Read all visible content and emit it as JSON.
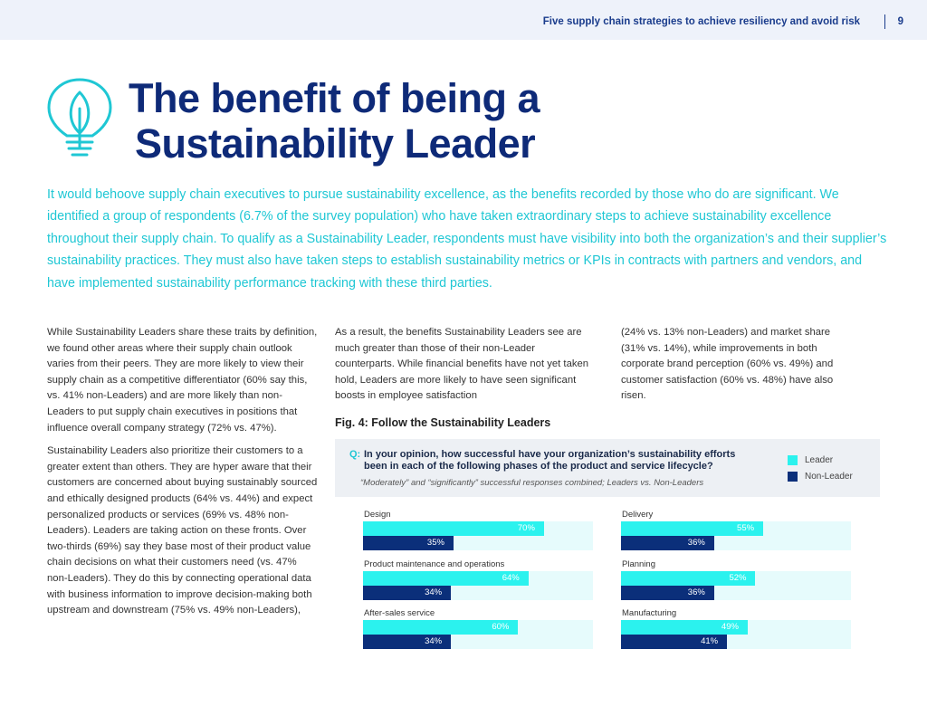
{
  "header": {
    "title": "Five supply chain strategies to achieve resiliency and avoid risk",
    "page_number": "9"
  },
  "colors": {
    "navy": "#0e2a78",
    "teal": "#1fc7d4",
    "leader": "#2bf2ee",
    "non_leader": "#0b2f7a"
  },
  "icon": "lightbulb-leaf-icon",
  "title": {
    "line1": "The benefit of being a",
    "line2": "Sustainability Leader"
  },
  "lead": "It would behoove supply chain executives to pursue sustainability excellence, as the benefits recorded by those who do are significant. We identified a group of respondents (6.7% of the survey population) who have taken extraordinary steps to achieve sustainability excellence throughout their supply chain. To qualify as a Sustainability Leader, respondents must have visibility into both the organization’s and their supplier’s sustainability practices. They must also have taken steps to establish sustainability metrics or KPIs in contracts with partners and vendors, and have implemented sustainability performance tracking with these third parties.",
  "body": {
    "col1_p1": "While Sustainability Leaders share these traits by definition, we found other areas where their supply chain outlook varies from their peers. They are more likely to view their supply chain as a competitive differentiator (60% say this, vs. 41% non-Leaders) and are more likely than non-Leaders to put supply chain executives in positions that influence overall company strategy (72% vs. 47%).",
    "col1_p2": "Sustainability Leaders also prioritize their customers to a greater extent than others. They are hyper aware that their customers are concerned about buying sustainably sourced and ethically designed products (64% vs. 44%) and expect personalized products or services (69% vs. 48% non-Leaders). Leaders are taking action on these fronts. Over two-thirds (69%) say they base most of their product value chain decisions on what their customers need (vs. 47% non-Leaders). They do this by connecting operational data with business information to improve decision-making both upstream and downstream (75% vs. 49% non-Leaders),",
    "col2_p1": "As a result, the benefits Sustainability Leaders see are much greater than those of their non-Leader counterparts. While financial benefits have not yet taken hold, Leaders are more likely to have seen significant boosts in employee satisfaction",
    "col3_p1": "(24% vs. 13% non-Leaders) and market share (31% vs. 14%), while improvements in both corporate brand perception (60% vs. 49%) and customer satisfaction (60% vs. 48%) have also risen."
  },
  "figure": {
    "title": "Fig. 4:  Follow the Sustainability Leaders",
    "q_label": "Q:",
    "question": "In your opinion, how successful have your organization’s sustainability efforts been in each of the following phases of the product and service lifecycle?",
    "subtitle": "“Moderately” and “significantly” successful responses combined; Leaders vs. Non-Leaders",
    "legend": {
      "leader": "Leader",
      "non_leader": "Non-Leader"
    }
  },
  "chart_data": {
    "type": "bar",
    "title": "Fig. 4:  Follow the Sustainability Leaders",
    "orientation": "horizontal",
    "xlim": [
      0,
      100
    ],
    "categories": [
      "Design",
      "Delivery",
      "Product maintenance and operations",
      "Planning",
      "After-sales service",
      "Manufacturing"
    ],
    "series": [
      {
        "name": "Leader",
        "values": [
          70,
          55,
          64,
          52,
          60,
          49
        ]
      },
      {
        "name": "Non-Leader",
        "values": [
          35,
          36,
          34,
          36,
          34,
          41
        ]
      }
    ],
    "value_labels": {
      "Leader": [
        "70%",
        "55%",
        "64%",
        "52%",
        "60%",
        "49%"
      ],
      "Non-Leader": [
        "35%",
        "36%",
        "34%",
        "36%",
        "34%",
        "41%"
      ]
    },
    "legend_position": "top-right"
  }
}
